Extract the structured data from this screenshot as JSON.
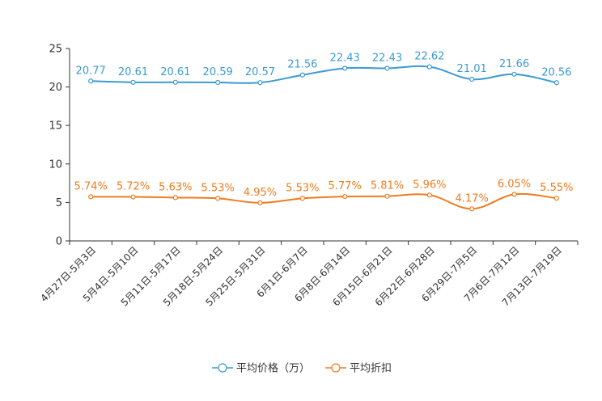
{
  "chart_data": {
    "type": "line",
    "title": "",
    "xlabel": "",
    "ylabel": "",
    "ylim": [
      0,
      25
    ],
    "yticks": [
      0,
      5,
      10,
      15,
      20,
      25
    ],
    "grid": false,
    "legend_position": "bottom-center",
    "categories": [
      "4月27日-5月3日",
      "5月4日-5月10日",
      "5月11日-5月17日",
      "5月18日-5月24日",
      "5月25日-5月31日",
      "6月1日-6月7日",
      "6月8日-6月14日",
      "6月15日-6月21日",
      "6月22日-6月28日",
      "6月29日-7月5日",
      "7月6日-7月12日",
      "7月13日-7月19日"
    ],
    "series": [
      {
        "name": "平均价格（万）",
        "color": "#3a9bd2",
        "values": [
          20.77,
          20.61,
          20.61,
          20.59,
          20.57,
          21.56,
          22.43,
          22.43,
          22.62,
          21.01,
          21.66,
          20.56
        ],
        "labels": [
          "20.77",
          "20.61",
          "20.61",
          "20.59",
          "20.57",
          "21.56",
          "22.43",
          "22.43",
          "22.62",
          "21.01",
          "21.66",
          "20.56"
        ]
      },
      {
        "name": "平均折扣",
        "color": "#f07b1e",
        "values": [
          5.74,
          5.72,
          5.63,
          5.53,
          4.95,
          5.53,
          5.77,
          5.81,
          5.96,
          4.17,
          6.05,
          5.55
        ],
        "labels": [
          "5.74%",
          "5.72%",
          "5.63%",
          "5.53%",
          "4.95%",
          "5.53%",
          "5.77%",
          "5.81%",
          "5.96%",
          "4.17%",
          "6.05%",
          "5.55%"
        ]
      }
    ]
  }
}
